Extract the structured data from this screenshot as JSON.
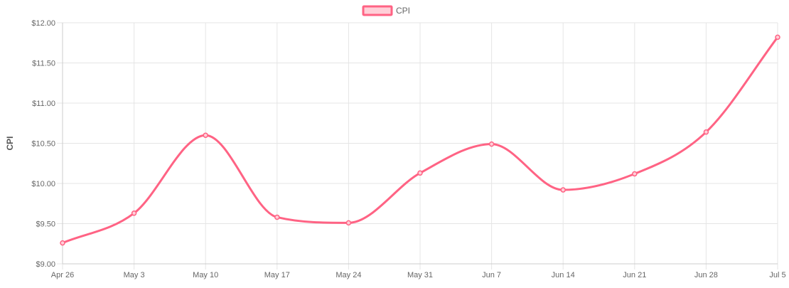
{
  "chart_data": {
    "type": "line",
    "title": "",
    "xlabel": "",
    "ylabel": "CPI",
    "categories": [
      "Apr 26",
      "May 3",
      "May 10",
      "May 17",
      "May 24",
      "May 31",
      "Jun 7",
      "Jun 14",
      "Jun 21",
      "Jun 28",
      "Jul 5"
    ],
    "y_ticks": [
      "$9.00",
      "$9.50",
      "$10.00",
      "$10.50",
      "$11.00",
      "$11.50",
      "$12.00"
    ],
    "ylim": [
      9.0,
      12.0
    ],
    "grid": true,
    "legend_position": "top-center",
    "series": [
      {
        "name": "CPI",
        "values": [
          9.26,
          9.63,
          10.6,
          9.58,
          9.51,
          10.13,
          10.49,
          9.92,
          10.12,
          10.64,
          11.82
        ],
        "line_color": "#ff6384",
        "fill_color": "#ffcfd8"
      }
    ]
  }
}
